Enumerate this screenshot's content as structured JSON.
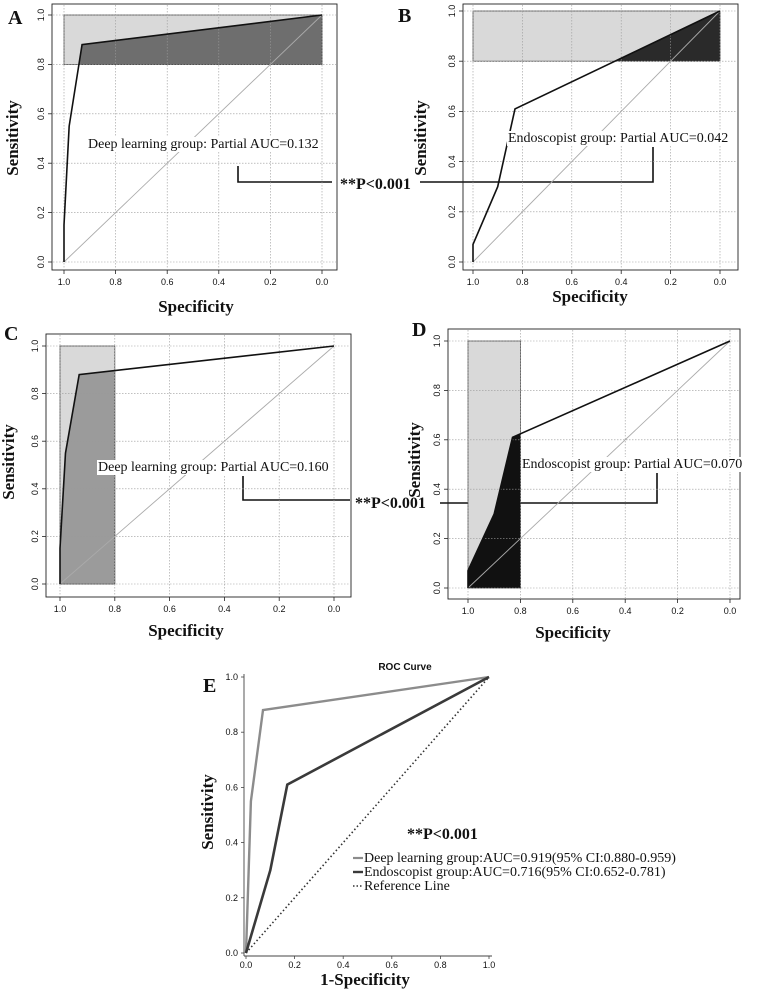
{
  "figure_pval": "**P<0.001",
  "colors": {
    "light_box": "#d9d9d9",
    "dark_fill_A": "#6e6e6e",
    "dark_fill_B": "#2a2a2a",
    "fill_C": "#9b9b9b",
    "fill_D": "#111111",
    "grid": "#9a9a9a",
    "diag": "#aaaaaa",
    "curve": "#111111",
    "dl_line": "#8c8c8c",
    "endo_line": "#3a3a3a"
  },
  "chart_data": [
    {
      "id": "A",
      "panel_label": "A",
      "type": "line",
      "xlabel": "Specificity",
      "ylabel": "Sensitivity",
      "xlim": [
        1.0,
        0.0
      ],
      "ylim": [
        0.0,
        1.0
      ],
      "x_ticks": [
        "1.0",
        "0.8",
        "0.6",
        "0.4",
        "0.2",
        "0.0"
      ],
      "y_ticks": [
        "0.0",
        "0.2",
        "0.4",
        "0.6",
        "0.8",
        "1.0"
      ],
      "partial_range": {
        "axis": "sensitivity",
        "from": 0.8,
        "to": 1.0
      },
      "curve": {
        "specificity": [
          1.0,
          1.0,
          0.98,
          0.93,
          0.0
        ],
        "sensitivity": [
          0.0,
          0.15,
          0.55,
          0.88,
          1.0
        ]
      },
      "annotation": "Deep learning group: Partial AUC=0.132"
    },
    {
      "id": "B",
      "panel_label": "B",
      "type": "line",
      "xlabel": "Specificity",
      "ylabel": "Sensitivity",
      "xlim": [
        1.0,
        0.0
      ],
      "ylim": [
        0.0,
        1.0
      ],
      "x_ticks": [
        "1.0",
        "0.8",
        "0.6",
        "0.4",
        "0.2",
        "0.0"
      ],
      "y_ticks": [
        "0.0",
        "0.2",
        "0.4",
        "0.6",
        "0.8",
        "1.0"
      ],
      "partial_range": {
        "axis": "sensitivity",
        "from": 0.8,
        "to": 1.0
      },
      "curve": {
        "specificity": [
          1.0,
          1.0,
          0.9,
          0.83,
          0.0
        ],
        "sensitivity": [
          0.0,
          0.07,
          0.3,
          0.61,
          1.0
        ]
      },
      "annotation": "Endoscopist group: Partial AUC=0.042"
    },
    {
      "id": "C",
      "panel_label": "C",
      "type": "line",
      "xlabel": "Specificity",
      "ylabel": "Sensitivity",
      "xlim": [
        1.0,
        0.0
      ],
      "ylim": [
        0.0,
        1.0
      ],
      "x_ticks": [
        "1.0",
        "0.8",
        "0.6",
        "0.4",
        "0.2",
        "0.0"
      ],
      "y_ticks": [
        "0.0",
        "0.2",
        "0.4",
        "0.6",
        "0.8",
        "1.0"
      ],
      "partial_range": {
        "axis": "specificity",
        "from": 1.0,
        "to": 0.8
      },
      "curve": {
        "specificity": [
          1.0,
          1.0,
          0.98,
          0.93,
          0.0
        ],
        "sensitivity": [
          0.0,
          0.15,
          0.55,
          0.88,
          1.0
        ]
      },
      "annotation": "Deep learning group: Partial AUC=0.160"
    },
    {
      "id": "D",
      "panel_label": "D",
      "type": "line",
      "xlabel": "Specificity",
      "ylabel": "Sensitivity",
      "xlim": [
        1.0,
        0.0
      ],
      "ylim": [
        0.0,
        1.0
      ],
      "x_ticks": [
        "1.0",
        "0.8",
        "0.6",
        "0.4",
        "0.2",
        "0.0"
      ],
      "y_ticks": [
        "0.0",
        "0.2",
        "0.4",
        "0.6",
        "0.8",
        "1.0"
      ],
      "partial_range": {
        "axis": "specificity",
        "from": 1.0,
        "to": 0.8
      },
      "curve": {
        "specificity": [
          1.0,
          1.0,
          0.9,
          0.83,
          0.0
        ],
        "sensitivity": [
          0.0,
          0.07,
          0.3,
          0.61,
          1.0
        ]
      },
      "annotation": "Endoscopist group: Partial AUC=0.070"
    },
    {
      "id": "E",
      "panel_label": "E",
      "type": "line",
      "title": "ROC Curve",
      "xlabel": "1-Specificity",
      "ylabel": "Sensitivity",
      "xlim": [
        0.0,
        1.0
      ],
      "ylim": [
        0.0,
        1.0
      ],
      "x_ticks": [
        "0.0",
        "0.2",
        "0.4",
        "0.6",
        "0.8",
        "1.0"
      ],
      "y_ticks": [
        "0.0",
        "0.2",
        "0.4",
        "0.6",
        "0.8",
        "1.0"
      ],
      "pval": "**P<0.001",
      "series": [
        {
          "name": "Deep learning group:AUC=0.919(95% CI:0.880-0.959)",
          "x": [
            0.0,
            0.02,
            0.07,
            1.0
          ],
          "y": [
            0.0,
            0.55,
            0.88,
            1.0
          ],
          "style": "solid-gray"
        },
        {
          "name": "Endoscopist group:AUC=0.716(95% CI:0.652-0.781)",
          "x": [
            0.0,
            0.1,
            0.17,
            1.0
          ],
          "y": [
            0.0,
            0.3,
            0.61,
            1.0
          ],
          "style": "solid-dark"
        },
        {
          "name": "Reference Line",
          "x": [
            0.0,
            1.0
          ],
          "y": [
            0.0,
            1.0
          ],
          "style": "dotted"
        }
      ]
    }
  ]
}
